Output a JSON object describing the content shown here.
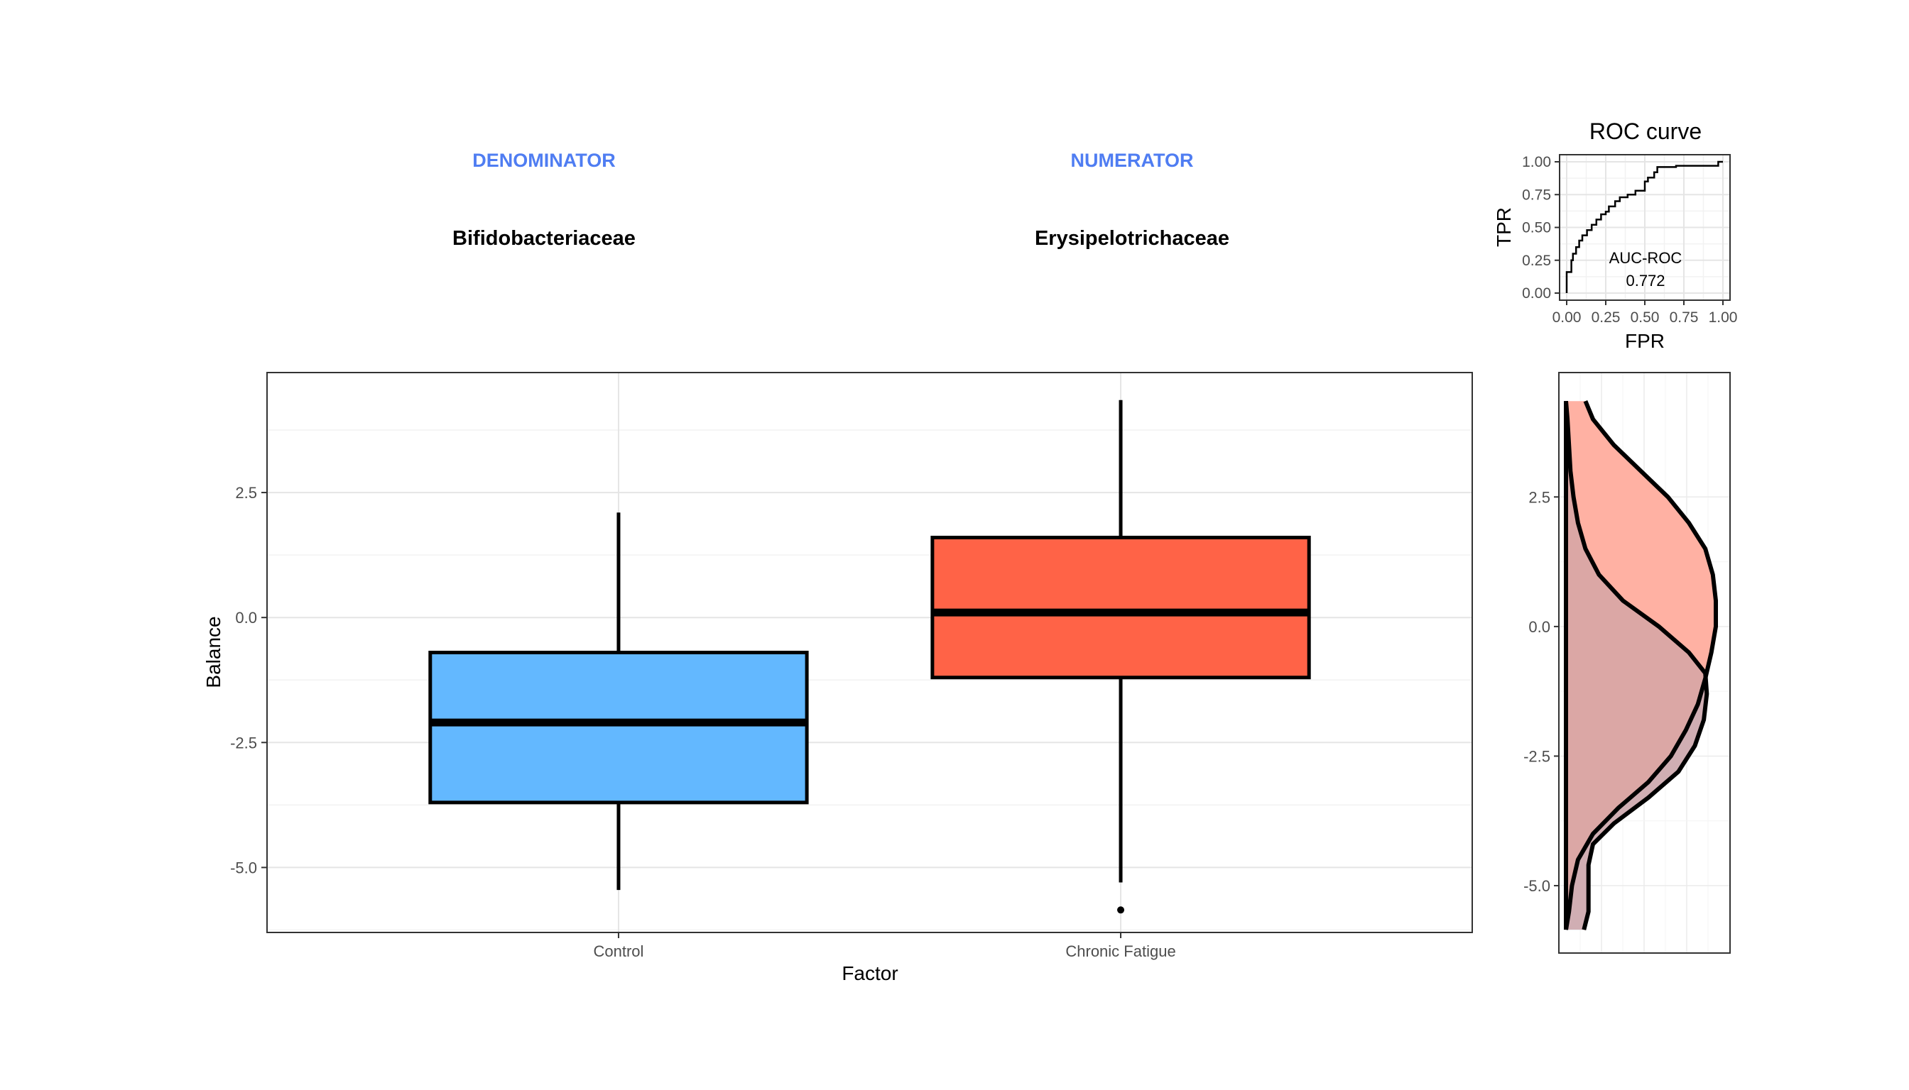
{
  "header": {
    "denominator_label": "DENOMINATOR",
    "numerator_label": "NUMERATOR",
    "denominator_taxon": "Bifidobacteriaceae",
    "numerator_taxon": "Erysipelotrichaceae",
    "label_color": "#4F7DF2"
  },
  "colors": {
    "control": "#63B8FF",
    "chronic_fatigue": "#FF6347",
    "density_control": "#B2DBFF",
    "density_cf": "#FFB1A3",
    "density_overlap": "#D5A6A6",
    "density_overlap_line": "#7A2A22"
  },
  "chart_data": [
    {
      "type": "box",
      "xlabel": "Factor",
      "ylabel": "Balance",
      "ylim": [
        -6.3,
        4.9
      ],
      "yticks": [
        -5.0,
        -2.5,
        0.0,
        2.5
      ],
      "ytick_labels": [
        "-5.0",
        "-2.5",
        "0.0",
        "2.5"
      ],
      "categories": [
        "Control",
        "Chronic Fatigue"
      ],
      "boxes": [
        {
          "name": "Control",
          "min": -5.45,
          "q1": -3.7,
          "median": -2.1,
          "q3": -0.7,
          "max": 2.1,
          "outliers": []
        },
        {
          "name": "Chronic Fatigue",
          "min": -5.3,
          "q1": -1.2,
          "median": 0.1,
          "q3": 1.6,
          "max": 4.35,
          "outliers": [
            -5.85
          ]
        }
      ],
      "grid": true
    },
    {
      "type": "line",
      "title": "ROC curve",
      "xlabel": "FPR",
      "ylabel": "TPR",
      "xlim": [
        0,
        1
      ],
      "ylim": [
        0,
        1
      ],
      "xticks": [
        0.0,
        0.25,
        0.5,
        0.75,
        1.0
      ],
      "xtick_labels": [
        "0.00",
        "0.25",
        "0.50",
        "0.75",
        "1.00"
      ],
      "yticks": [
        0.0,
        0.25,
        0.5,
        0.75,
        1.0
      ],
      "ytick_labels": [
        "0.00",
        "0.25",
        "0.50",
        "0.75",
        "1.00"
      ],
      "annotation_label": "AUC-ROC",
      "auc": "0.772",
      "points": [
        [
          0.0,
          0.0
        ],
        [
          0.0,
          0.16
        ],
        [
          0.03,
          0.16
        ],
        [
          0.03,
          0.25
        ],
        [
          0.04,
          0.25
        ],
        [
          0.04,
          0.3
        ],
        [
          0.06,
          0.3
        ],
        [
          0.06,
          0.35
        ],
        [
          0.08,
          0.35
        ],
        [
          0.08,
          0.4
        ],
        [
          0.1,
          0.4
        ],
        [
          0.1,
          0.44
        ],
        [
          0.13,
          0.44
        ],
        [
          0.13,
          0.48
        ],
        [
          0.16,
          0.48
        ],
        [
          0.16,
          0.52
        ],
        [
          0.19,
          0.52
        ],
        [
          0.19,
          0.56
        ],
        [
          0.22,
          0.56
        ],
        [
          0.22,
          0.6
        ],
        [
          0.25,
          0.6
        ],
        [
          0.25,
          0.62
        ],
        [
          0.27,
          0.62
        ],
        [
          0.27,
          0.66
        ],
        [
          0.31,
          0.66
        ],
        [
          0.31,
          0.7
        ],
        [
          0.34,
          0.7
        ],
        [
          0.34,
          0.73
        ],
        [
          0.39,
          0.73
        ],
        [
          0.39,
          0.75
        ],
        [
          0.44,
          0.75
        ],
        [
          0.44,
          0.78
        ],
        [
          0.5,
          0.78
        ],
        [
          0.5,
          0.85
        ],
        [
          0.52,
          0.85
        ],
        [
          0.52,
          0.88
        ],
        [
          0.56,
          0.88
        ],
        [
          0.56,
          0.92
        ],
        [
          0.58,
          0.92
        ],
        [
          0.58,
          0.96
        ],
        [
          0.7,
          0.96
        ],
        [
          0.7,
          0.97
        ],
        [
          0.97,
          0.97
        ],
        [
          0.97,
          1.0
        ],
        [
          1.0,
          1.0
        ]
      ],
      "grid": true
    },
    {
      "type": "area",
      "orientation": "vertical-density",
      "ylim": [
        -6.3,
        4.9
      ],
      "yticks": [
        -5.0,
        -2.5,
        0.0,
        2.5
      ],
      "ytick_labels": [
        "-5.0",
        "-2.5",
        "0.0",
        "2.5"
      ],
      "series": [
        {
          "key": "control",
          "points": [
            [
              -5.85,
              0.12
            ],
            [
              -5.5,
              0.15
            ],
            [
              -5.1,
              0.15
            ],
            [
              -4.6,
              0.15
            ],
            [
              -4.2,
              0.18
            ],
            [
              -3.8,
              0.32
            ],
            [
              -3.3,
              0.55
            ],
            [
              -2.8,
              0.75
            ],
            [
              -2.3,
              0.86
            ],
            [
              -1.8,
              0.92
            ],
            [
              -1.3,
              0.94
            ],
            [
              -0.9,
              0.93
            ],
            [
              -0.5,
              0.82
            ],
            [
              0.0,
              0.62
            ],
            [
              0.5,
              0.38
            ],
            [
              1.0,
              0.22
            ],
            [
              1.5,
              0.13
            ],
            [
              2.0,
              0.08
            ],
            [
              2.5,
              0.05
            ],
            [
              3.0,
              0.03
            ],
            [
              3.5,
              0.02
            ],
            [
              4.0,
              0.01
            ],
            [
              4.35,
              0.0
            ]
          ]
        },
        {
          "key": "chronic_fatigue",
          "points": [
            [
              -5.85,
              0.0
            ],
            [
              -5.5,
              0.02
            ],
            [
              -5.0,
              0.04
            ],
            [
              -4.5,
              0.08
            ],
            [
              -4.0,
              0.18
            ],
            [
              -3.5,
              0.35
            ],
            [
              -3.0,
              0.55
            ],
            [
              -2.5,
              0.7
            ],
            [
              -2.0,
              0.8
            ],
            [
              -1.5,
              0.88
            ],
            [
              -1.0,
              0.93
            ],
            [
              -0.5,
              0.97
            ],
            [
              0.0,
              1.0
            ],
            [
              0.5,
              1.0
            ],
            [
              1.0,
              0.98
            ],
            [
              1.5,
              0.93
            ],
            [
              2.0,
              0.82
            ],
            [
              2.5,
              0.68
            ],
            [
              3.0,
              0.5
            ],
            [
              3.5,
              0.32
            ],
            [
              4.0,
              0.18
            ],
            [
              4.35,
              0.13
            ]
          ]
        }
      ],
      "grid": true
    }
  ]
}
